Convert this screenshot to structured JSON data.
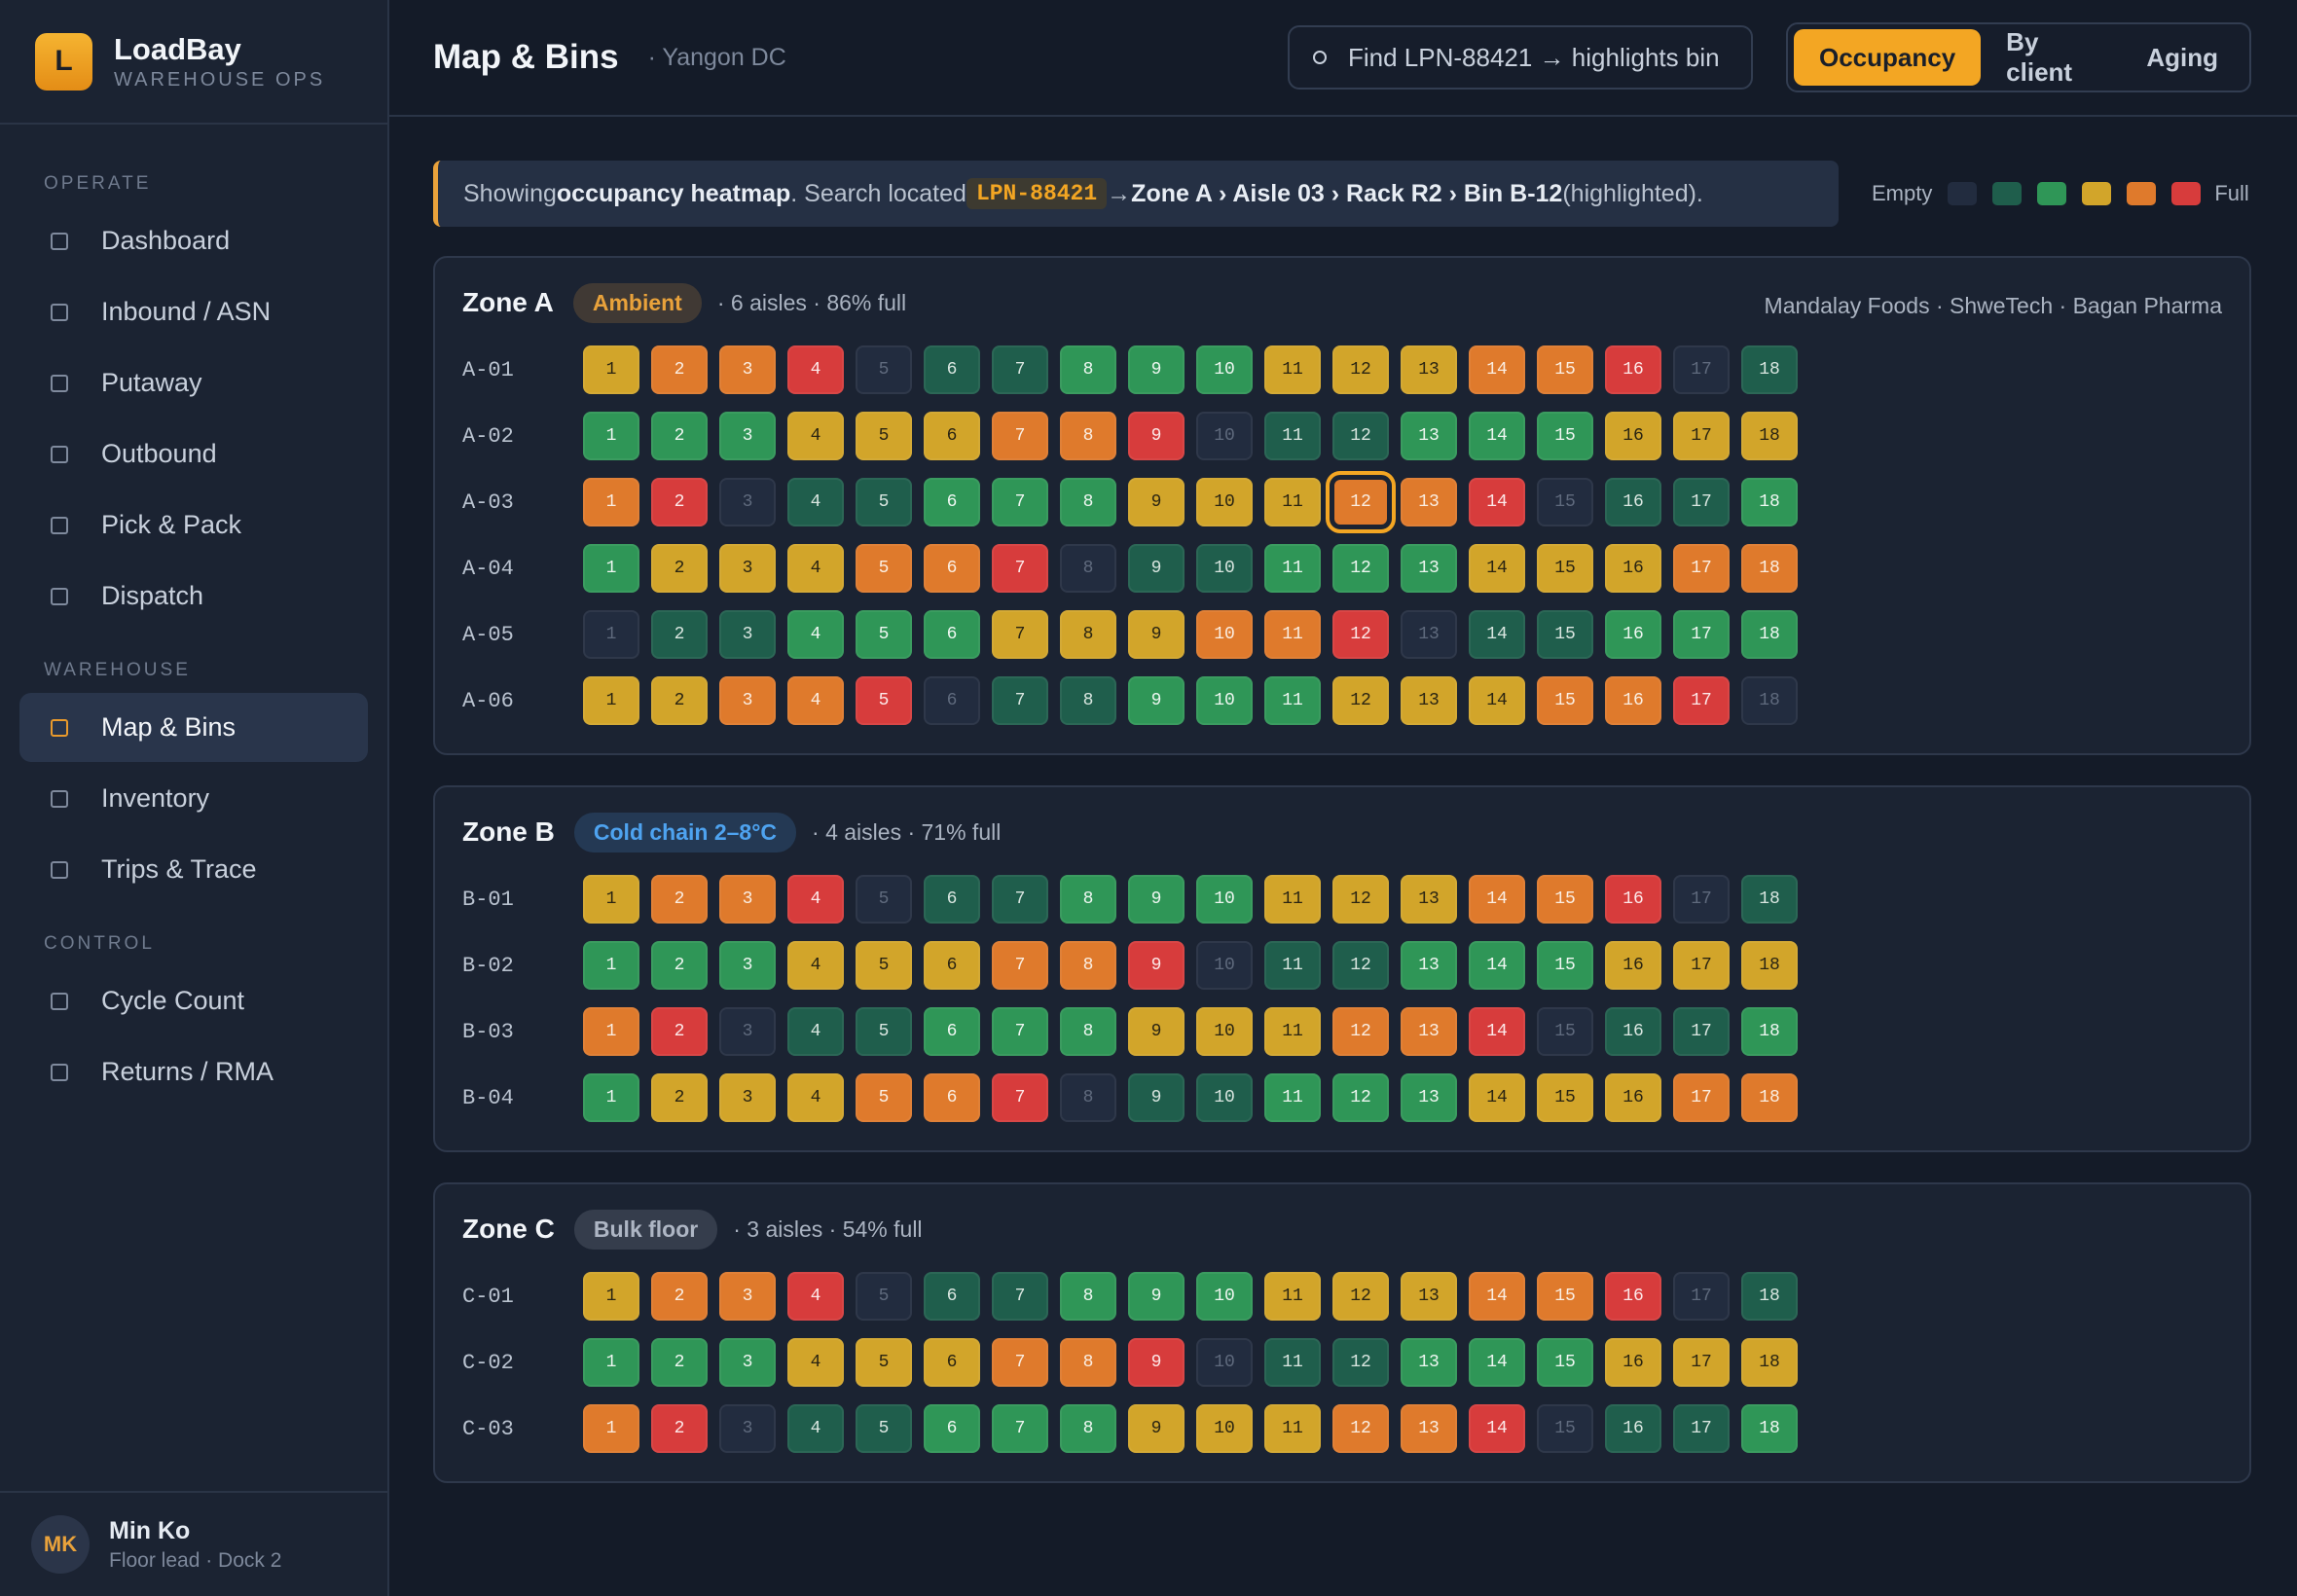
{
  "brand": {
    "logo": "L",
    "name": "LoadBay",
    "subtitle": "WAREHOUSE OPS"
  },
  "nav": [
    {
      "label": "OPERATE",
      "items": [
        {
          "label": "Dashboard"
        },
        {
          "label": "Inbound / ASN"
        },
        {
          "label": "Putaway"
        },
        {
          "label": "Outbound"
        },
        {
          "label": "Pick & Pack"
        },
        {
          "label": "Dispatch"
        }
      ]
    },
    {
      "label": "WAREHOUSE",
      "items": [
        {
          "label": "Map & Bins",
          "active": true
        },
        {
          "label": "Inventory"
        },
        {
          "label": "Trips & Trace"
        }
      ]
    },
    {
      "label": "CONTROL",
      "items": [
        {
          "label": "Cycle Count"
        },
        {
          "label": "Returns / RMA"
        }
      ]
    }
  ],
  "user": {
    "initials": "MK",
    "name": "Min Ko",
    "role": "Floor lead · Dock 2"
  },
  "header": {
    "title": "Map & Bins",
    "subtitle": "· Yangon DC",
    "search": "Find LPN-88421 → highlights bin",
    "tabs": [
      {
        "label": "Occupancy",
        "active": true
      },
      {
        "label": "By client"
      },
      {
        "label": "Aging"
      }
    ]
  },
  "banner": {
    "prefix": "Showing",
    "emphasis": "occupancy heatmap",
    "middle": ". Search located",
    "lpn": "LPN-88421",
    "arrow": "→",
    "path": "Zone A › Aisle 03 › Rack R2 › Bin B-12",
    "suffix": "(highlighted)."
  },
  "legend": {
    "min_label": "Empty",
    "max_label": "Full",
    "colors": [
      "#222c3f",
      "#1f5e4c",
      "#2f9657",
      "#d2a52a",
      "#df7a2c",
      "#d73c3c"
    ]
  },
  "zones": [
    {
      "name": "Zone A",
      "tag": "Ambient",
      "tag_color": "#e9a23b",
      "summary": "· 6 aisles · 86% full",
      "clients": "Mandalay Foods · ShweTech · Bagan Pharma",
      "aisles": [
        {
          "label": "A-01",
          "bins": [
            1,
            2,
            3,
            4,
            5,
            6,
            7,
            8,
            9,
            10,
            11,
            12,
            13,
            14,
            15,
            16,
            17,
            18
          ],
          "levels": [
            3,
            4,
            4,
            5,
            0,
            1,
            1,
            2,
            2,
            2,
            3,
            3,
            3,
            4,
            4,
            5,
            0,
            1
          ]
        },
        {
          "label": "A-02",
          "bins": [
            1,
            2,
            3,
            4,
            5,
            6,
            7,
            8,
            9,
            10,
            11,
            12,
            13,
            14,
            15,
            16,
            17,
            18
          ],
          "levels": [
            2,
            2,
            2,
            3,
            3,
            3,
            4,
            4,
            5,
            0,
            1,
            1,
            2,
            2,
            2,
            3,
            3,
            3
          ]
        },
        {
          "label": "A-03",
          "bins": [
            1,
            2,
            3,
            4,
            5,
            6,
            7,
            8,
            9,
            10,
            11,
            12,
            13,
            14,
            15,
            16,
            17,
            18
          ],
          "levels": [
            4,
            5,
            0,
            1,
            1,
            2,
            2,
            2,
            3,
            3,
            3,
            4,
            4,
            5,
            0,
            1,
            1,
            2
          ],
          "highlighted_bin": 12
        },
        {
          "label": "A-04",
          "bins": [
            1,
            2,
            3,
            4,
            5,
            6,
            7,
            8,
            9,
            10,
            11,
            12,
            13,
            14,
            15,
            16,
            17,
            18
          ],
          "levels": [
            2,
            3,
            3,
            3,
            4,
            4,
            5,
            0,
            1,
            1,
            2,
            2,
            2,
            3,
            3,
            3,
            4,
            4
          ]
        },
        {
          "label": "A-05",
          "bins": [
            1,
            2,
            3,
            4,
            5,
            6,
            7,
            8,
            9,
            10,
            11,
            12,
            13,
            14,
            15,
            16,
            17,
            18
          ],
          "levels": [
            0,
            1,
            1,
            2,
            2,
            2,
            3,
            3,
            3,
            4,
            4,
            5,
            0,
            1,
            1,
            2,
            2,
            2
          ]
        },
        {
          "label": "A-06",
          "bins": [
            1,
            2,
            3,
            4,
            5,
            6,
            7,
            8,
            9,
            10,
            11,
            12,
            13,
            14,
            15,
            16,
            17,
            18
          ],
          "levels": [
            3,
            3,
            4,
            4,
            5,
            0,
            1,
            1,
            2,
            2,
            2,
            3,
            3,
            3,
            4,
            4,
            5,
            0
          ]
        }
      ]
    },
    {
      "name": "Zone B",
      "tag": "Cold chain 2–8°C",
      "tag_color": "#4ea3f0",
      "summary": "· 4 aisles · 71% full",
      "aisles": [
        {
          "label": "B-01",
          "bins": [
            1,
            2,
            3,
            4,
            5,
            6,
            7,
            8,
            9,
            10,
            11,
            12,
            13,
            14,
            15,
            16,
            17,
            18
          ],
          "levels": [
            3,
            4,
            4,
            5,
            0,
            1,
            1,
            2,
            2,
            2,
            3,
            3,
            3,
            4,
            4,
            5,
            0,
            1
          ]
        },
        {
          "label": "B-02",
          "bins": [
            1,
            2,
            3,
            4,
            5,
            6,
            7,
            8,
            9,
            10,
            11,
            12,
            13,
            14,
            15,
            16,
            17,
            18
          ],
          "levels": [
            2,
            2,
            2,
            3,
            3,
            3,
            4,
            4,
            5,
            0,
            1,
            1,
            2,
            2,
            2,
            3,
            3,
            3
          ]
        },
        {
          "label": "B-03",
          "bins": [
            1,
            2,
            3,
            4,
            5,
            6,
            7,
            8,
            9,
            10,
            11,
            12,
            13,
            14,
            15,
            16,
            17,
            18
          ],
          "levels": [
            4,
            5,
            0,
            1,
            1,
            2,
            2,
            2,
            3,
            3,
            3,
            4,
            4,
            5,
            0,
            1,
            1,
            2
          ]
        },
        {
          "label": "B-04",
          "bins": [
            1,
            2,
            3,
            4,
            5,
            6,
            7,
            8,
            9,
            10,
            11,
            12,
            13,
            14,
            15,
            16,
            17,
            18
          ],
          "levels": [
            2,
            3,
            3,
            3,
            4,
            4,
            5,
            0,
            1,
            1,
            2,
            2,
            2,
            3,
            3,
            3,
            4,
            4
          ]
        }
      ]
    },
    {
      "name": "Zone C",
      "tag": "Bulk floor",
      "tag_color": "#aeb6c4",
      "summary": "· 3 aisles · 54% full",
      "aisles": [
        {
          "label": "C-01",
          "bins": [
            1,
            2,
            3,
            4,
            5,
            6,
            7,
            8,
            9,
            10,
            11,
            12,
            13,
            14,
            15,
            16,
            17,
            18
          ],
          "levels": [
            3,
            4,
            4,
            5,
            0,
            1,
            1,
            2,
            2,
            2,
            3,
            3,
            3,
            4,
            4,
            5,
            0,
            1
          ]
        },
        {
          "label": "C-02",
          "bins": [
            1,
            2,
            3,
            4,
            5,
            6,
            7,
            8,
            9,
            10,
            11,
            12,
            13,
            14,
            15,
            16,
            17,
            18
          ],
          "levels": [
            2,
            2,
            2,
            3,
            3,
            3,
            4,
            4,
            5,
            0,
            1,
            1,
            2,
            2,
            2,
            3,
            3,
            3
          ]
        },
        {
          "label": "C-03",
          "bins": [
            1,
            2,
            3,
            4,
            5,
            6,
            7,
            8,
            9,
            10,
            11,
            12,
            13,
            14,
            15,
            16,
            17,
            18
          ],
          "levels": [
            4,
            5,
            0,
            1,
            1,
            2,
            2,
            2,
            3,
            3,
            3,
            4,
            4,
            5,
            0,
            1,
            1,
            2
          ]
        }
      ]
    }
  ]
}
